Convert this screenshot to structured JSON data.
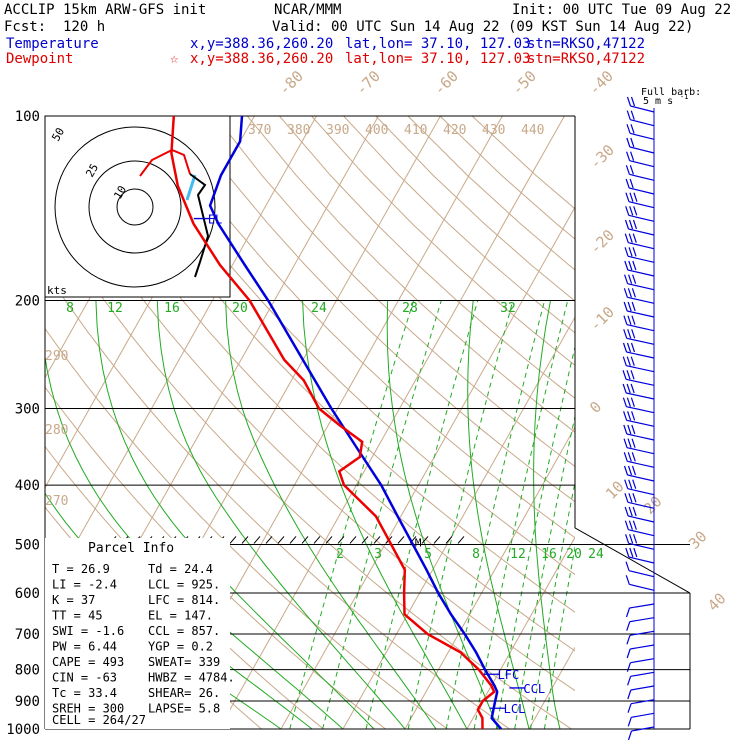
{
  "header": {
    "model": "ACCLIP 15km ARW-GFS init",
    "org": "NCAR/MMM",
    "init": "Init: 00 UTC Tue 09 Aug 22",
    "fcst": "Fcst:  120 h",
    "valid": "Valid: 00 UTC Sun 14 Aug 22 (09 KST Sun 14 Aug 22)",
    "temp_label": "Temperature",
    "temp_loc": "x,y=388.36,260.20",
    "temp_latlon": "lat,lon= 37.10, 127.03",
    "temp_stn": "stn=RKSO,47122",
    "dew_label": "Dewpoint",
    "dew_loc": "x,y=388.36,260.20",
    "dew_latlon": "lat,lon= 37.10, 127.03",
    "dew_stn": "stn=RKSO,47122",
    "barb_label_1": "Full barb:",
    "barb_label_2": "5 m s",
    "barb_label_sup": "-1"
  },
  "colors": {
    "temperature": "#0000dd",
    "dewpoint": "#ee0000",
    "isotherm": "#c8a98a",
    "mixing_ratio": "#22aa22",
    "adiabat": "#c8a98a",
    "grid": "#000000"
  },
  "chart_data": {
    "type": "line",
    "pressure_levels": [
      100,
      200,
      300,
      400,
      500,
      600,
      700,
      800,
      900,
      1000
    ],
    "isotherm_labels": [
      "-80",
      "-70",
      "-60",
      "-50",
      "-40",
      "-30",
      "-20",
      "-10",
      "0",
      "10",
      "20",
      "30",
      "40"
    ],
    "theta_labels_top": [
      "370",
      "380",
      "390",
      "400",
      "410",
      "420",
      "430",
      "440"
    ],
    "theta_labels_left": [
      "290",
      "280",
      "270"
    ],
    "mixing_labels_upper": [
      "8",
      "12",
      "16",
      "20",
      "24",
      "28",
      "32"
    ],
    "mixing_labels_lower": [
      "2",
      "3",
      "5",
      "8",
      "12",
      "16",
      "20",
      "24"
    ],
    "series": [
      {
        "name": "Temperature",
        "points": [
          [
            1000,
            25.5
          ],
          [
            960,
            23.0
          ],
          [
            930,
            22.5
          ],
          [
            900,
            22.0
          ],
          [
            870,
            21.5
          ],
          [
            850,
            20.5
          ],
          [
            800,
            17.5
          ],
          [
            750,
            14.5
          ],
          [
            700,
            11.0
          ],
          [
            650,
            7.0
          ],
          [
            600,
            3.0
          ],
          [
            550,
            -1.0
          ],
          [
            500,
            -5.5
          ],
          [
            450,
            -10.5
          ],
          [
            400,
            -16.0
          ],
          [
            350,
            -23.0
          ],
          [
            300,
            -31.0
          ],
          [
            250,
            -40.0
          ],
          [
            200,
            -51.0
          ],
          [
            175,
            -58.0
          ],
          [
            150,
            -66.0
          ],
          [
            140,
            -69.0
          ],
          [
            125,
            -70.0
          ],
          [
            110,
            -70.0
          ],
          [
            100,
            -72.0
          ]
        ]
      },
      {
        "name": "Dewpoint",
        "points": [
          [
            1000,
            22.5
          ],
          [
            960,
            21.5
          ],
          [
            930,
            20.0
          ],
          [
            900,
            20.0
          ],
          [
            870,
            21.0
          ],
          [
            850,
            20.0
          ],
          [
            800,
            16.5
          ],
          [
            750,
            12.0
          ],
          [
            700,
            5.0
          ],
          [
            650,
            -0.5
          ],
          [
            600,
            -2.5
          ],
          [
            550,
            -4.5
          ],
          [
            500,
            -9.0
          ],
          [
            450,
            -14.0
          ],
          [
            400,
            -22.0
          ],
          [
            380,
            -24.0
          ],
          [
            360,
            -22.0
          ],
          [
            340,
            -23.0
          ],
          [
            320,
            -28.0
          ],
          [
            300,
            -33.0
          ],
          [
            270,
            -38.0
          ],
          [
            250,
            -43.0
          ],
          [
            200,
            -54.0
          ],
          [
            175,
            -62.0
          ],
          [
            150,
            -70.0
          ],
          [
            130,
            -76.0
          ],
          [
            115,
            -80.0
          ],
          [
            100,
            -83.0
          ]
        ]
      }
    ],
    "markers": [
      {
        "label": "EL",
        "pressure": 147
      },
      {
        "label": "LFC",
        "pressure": 814
      },
      {
        "label": "CCL",
        "pressure": 857
      },
      {
        "label": "LCL",
        "pressure": 925
      },
      {
        "label": "M",
        "pressure": 500
      }
    ],
    "ylim": [
      1000,
      100
    ],
    "y_scale": "log"
  },
  "hodograph": {
    "ring_labels": [
      "10",
      "25",
      "50"
    ],
    "units": "kts"
  },
  "parcel_info": {
    "title": "Parcel Info",
    "rows": [
      [
        "T",
        "=",
        "26.9",
        "Td",
        "=",
        "24.4"
      ],
      [
        "LI",
        "=",
        "-2.4",
        "LCL",
        "=",
        "925."
      ],
      [
        "K",
        "=",
        "37",
        "LFC",
        "=",
        "814."
      ],
      [
        "TT",
        "=",
        "45",
        "EL",
        "=",
        "147."
      ],
      [
        "SWI",
        "=",
        "-1.6",
        "CCL",
        "=",
        "857."
      ],
      [
        "PW",
        "=",
        "6.44",
        "YGP",
        "=",
        "0.2"
      ],
      [
        "CAPE",
        "=",
        "493",
        "SWEAT",
        "=",
        "339"
      ],
      [
        "CIN",
        "=",
        "-63",
        "HWBZ",
        "=",
        "4784."
      ],
      [
        "Tc",
        "=",
        "33.4",
        "SHEAR",
        "=",
        "26."
      ],
      [
        "SREH",
        "=",
        "300",
        "LAPSE",
        "=",
        "5.8"
      ]
    ],
    "cell": "CELL = 264/27"
  },
  "wind_barbs": {
    "count": 46
  }
}
